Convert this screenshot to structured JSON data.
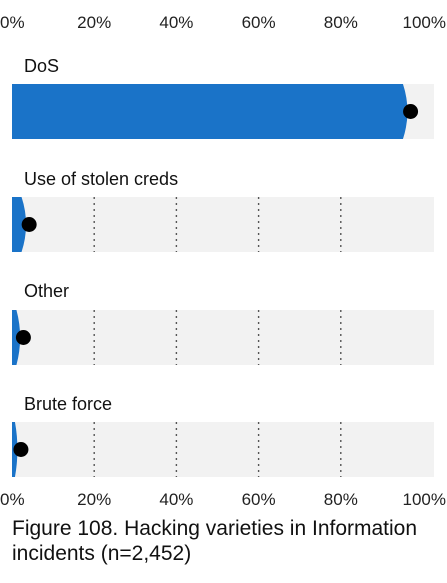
{
  "caption": "Figure 108. Hacking varieties in Information incidents (n=2,452)",
  "chart_data": {
    "type": "bar",
    "orientation": "horizontal",
    "title": "",
    "xlabel": "",
    "ylabel": "",
    "xlim": [
      0,
      100
    ],
    "ticks": [
      "0%",
      "20%",
      "40%",
      "60%",
      "80%",
      "100%"
    ],
    "tick_position": "top and bottom",
    "grid": true,
    "categories": [
      "DoS",
      "Use of stolen creds",
      "Other",
      "Brute force"
    ],
    "values": [
      96,
      3.2,
      1.8,
      1.2
    ],
    "colors": {
      "bar": "#1a73c8",
      "track": "#f2f2f2",
      "point": "#000000",
      "grid": "#555555"
    }
  }
}
